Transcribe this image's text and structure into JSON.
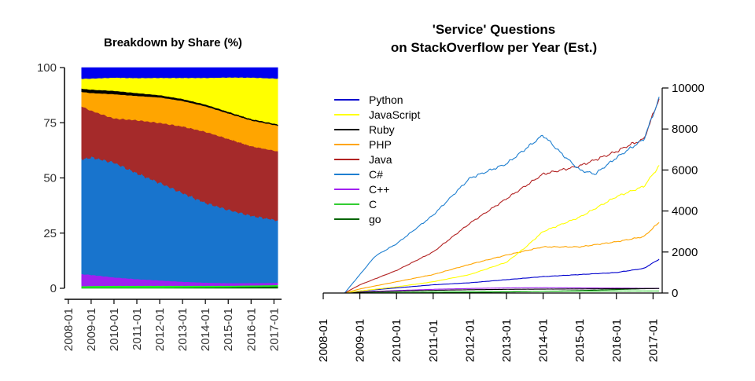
{
  "chart_data": [
    {
      "type": "area",
      "title": "Breakdown by Share (%)",
      "xlabel": "",
      "ylabel": "",
      "stacked": true,
      "ylim": [
        0,
        100
      ],
      "yticks": [
        0,
        25,
        50,
        75,
        100
      ],
      "xlim": [
        "2007-11",
        "2017-05"
      ],
      "xticks": [
        "2008-01",
        "2009-01",
        "2010-01",
        "2011-01",
        "2012-01",
        "2013-01",
        "2014-01",
        "2015-01",
        "2016-01",
        "2017-01"
      ],
      "x": [
        "2008-08",
        "2009-01",
        "2010-01",
        "2011-01",
        "2012-01",
        "2013-01",
        "2014-01",
        "2015-01",
        "2016-01",
        "2017-03"
      ],
      "series": [
        {
          "name": "go",
          "color": "#006400",
          "values": [
            0.2,
            0.2,
            0.2,
            0.2,
            0.2,
            0.3,
            0.4,
            0.5,
            0.7,
            0.9
          ]
        },
        {
          "name": "C",
          "color": "#22ee22",
          "values": [
            0.8,
            0.9,
            1.0,
            1.0,
            1.0,
            0.9,
            0.8,
            0.7,
            0.6,
            0.6
          ]
        },
        {
          "name": "C++",
          "color": "#a020f0",
          "values": [
            5.5,
            5.0,
            3.8,
            3.0,
            2.4,
            1.8,
            1.4,
            1.2,
            1.1,
            1.0
          ]
        },
        {
          "name": "C#",
          "color": "#1874cd",
          "values": [
            52,
            53,
            52,
            48,
            44,
            40,
            36,
            33,
            30,
            28
          ]
        },
        {
          "name": "Java",
          "color": "#a52a2a",
          "values": [
            24,
            21,
            20,
            24,
            27,
            30,
            32,
            32,
            31,
            31
          ]
        },
        {
          "name": "PHP",
          "color": "#ffa500",
          "values": [
            6.5,
            8.0,
            11.0,
            11.0,
            11.5,
            11.5,
            11.5,
            11.5,
            11.5,
            11.5
          ]
        },
        {
          "name": "Ruby",
          "color": "#000000",
          "values": [
            1.5,
            1.5,
            1.5,
            1.3,
            1.0,
            0.9,
            0.8,
            0.7,
            0.6,
            0.6
          ]
        },
        {
          "name": "JavaScript",
          "color": "#ffff00",
          "values": [
            4.5,
            5.0,
            6.0,
            6.8,
            7.8,
            9.5,
            12.0,
            15.5,
            18.5,
            20.5
          ]
        },
        {
          "name": "Python",
          "color": "#0000ee",
          "values": [
            5.0,
            4.9,
            4.5,
            4.7,
            4.6,
            4.6,
            4.6,
            4.4,
            4.4,
            4.9
          ]
        }
      ]
    },
    {
      "type": "line",
      "title": [
        "'Service' Questions",
        "on StackOverflow per Year (Est.)"
      ],
      "xlabel": "",
      "ylabel": "",
      "ylim": [
        0,
        10000
      ],
      "yticks": [
        0,
        2000,
        4000,
        6000,
        8000,
        10000
      ],
      "y_axis_position": "right",
      "xlim": [
        "2008-01",
        "2017-04"
      ],
      "xticks": [
        "2008-01",
        "2009-01",
        "2010-01",
        "2011-01",
        "2012-01",
        "2013-01",
        "2014-01",
        "2015-01",
        "2016-01",
        "2017-01"
      ],
      "legend_position": "top-left",
      "series": [
        {
          "name": "Python",
          "color": "#0000cd",
          "x": [
            "2008-08",
            "2009-01",
            "2010-01",
            "2011-01",
            "2012-01",
            "2013-01",
            "2014-01",
            "2015-01",
            "2016-01",
            "2016-10",
            "2017-03"
          ],
          "values": [
            0,
            100,
            250,
            400,
            500,
            650,
            800,
            900,
            1000,
            1200,
            1650
          ]
        },
        {
          "name": "JavaScript",
          "color": "#ffff00",
          "x": [
            "2008-08",
            "2009-01",
            "2010-01",
            "2011-01",
            "2012-01",
            "2013-01",
            "2013-07",
            "2014-01",
            "2015-01",
            "2016-01",
            "2016-10",
            "2017-03"
          ],
          "values": [
            0,
            100,
            300,
            550,
            900,
            1500,
            2200,
            3000,
            3700,
            4700,
            5200,
            6200
          ]
        },
        {
          "name": "Ruby",
          "color": "#000000",
          "x": [
            "2008-08",
            "2009-01",
            "2010-01",
            "2011-01",
            "2012-01",
            "2013-01",
            "2014-01",
            "2015-01",
            "2016-01",
            "2017-03"
          ],
          "values": [
            0,
            40,
            90,
            130,
            160,
            180,
            190,
            200,
            210,
            220
          ]
        },
        {
          "name": "PHP",
          "color": "#ffa500",
          "x": [
            "2008-08",
            "2009-01",
            "2010-01",
            "2011-01",
            "2012-01",
            "2013-01",
            "2014-01",
            "2015-01",
            "2016-01",
            "2016-10",
            "2017-03"
          ],
          "values": [
            0,
            200,
            550,
            900,
            1400,
            1850,
            2250,
            2250,
            2500,
            2750,
            3450
          ]
        },
        {
          "name": "Java",
          "color": "#b22222",
          "x": [
            "2008-08",
            "2009-01",
            "2010-01",
            "2011-01",
            "2012-01",
            "2013-01",
            "2014-01",
            "2015-01",
            "2016-01",
            "2016-05",
            "2016-10",
            "2017-03"
          ],
          "values": [
            0,
            400,
            1100,
            2000,
            3400,
            4600,
            5800,
            6200,
            6900,
            7200,
            7500,
            9500
          ]
        },
        {
          "name": "C#",
          "color": "#1e7fd0",
          "x": [
            "2008-08",
            "2009-01",
            "2009-06",
            "2010-01",
            "2011-01",
            "2012-01",
            "2013-01",
            "2014-01",
            "2014-07",
            "2015-01",
            "2015-06",
            "2016-01",
            "2016-10",
            "2017-03"
          ],
          "values": [
            0,
            900,
            1800,
            2400,
            3800,
            5600,
            6300,
            7700,
            6800,
            6000,
            5800,
            6600,
            7500,
            9500
          ]
        },
        {
          "name": "C++",
          "color": "#a020f0",
          "x": [
            "2008-08",
            "2009-01",
            "2010-01",
            "2011-01",
            "2012-01",
            "2013-01",
            "2014-01",
            "2015-01",
            "2016-01",
            "2017-03"
          ],
          "values": [
            0,
            50,
            120,
            180,
            220,
            250,
            260,
            250,
            240,
            220
          ]
        },
        {
          "name": "C",
          "color": "#32cd32",
          "x": [
            "2008-08",
            "2009-01",
            "2010-01",
            "2011-01",
            "2012-01",
            "2013-01",
            "2014-01",
            "2015-01",
            "2016-01",
            "2017-03"
          ],
          "values": [
            0,
            10,
            30,
            50,
            60,
            70,
            80,
            90,
            100,
            100
          ]
        },
        {
          "name": "go",
          "color": "#006400",
          "x": [
            "2008-08",
            "2009-01",
            "2010-01",
            "2011-01",
            "2012-01",
            "2013-01",
            "2014-01",
            "2015-01",
            "2016-01",
            "2017-03"
          ],
          "values": [
            0,
            5,
            10,
            20,
            30,
            50,
            80,
            120,
            170,
            230
          ]
        }
      ]
    }
  ]
}
